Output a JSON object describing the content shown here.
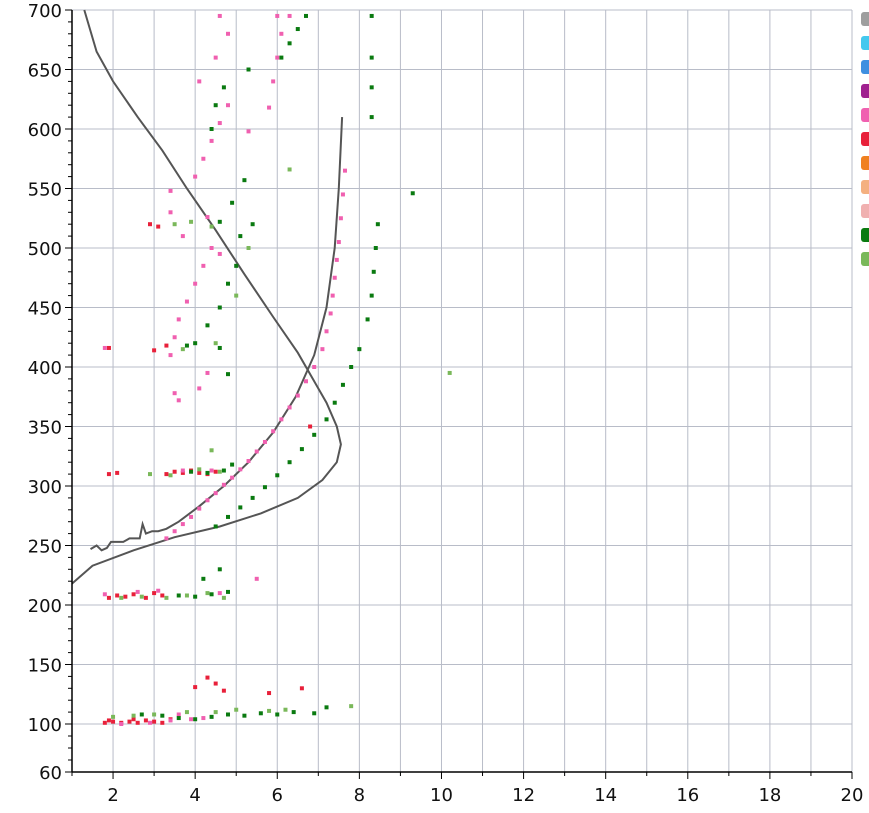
{
  "chart_data": {
    "type": "scatter",
    "title": "",
    "xlabel": "",
    "ylabel": "",
    "xlim": [
      1,
      20
    ],
    "ylim": [
      60,
      700
    ],
    "grid": true,
    "x_ticks": [
      2,
      4,
      6,
      8,
      10,
      12,
      14,
      16,
      18,
      20
    ],
    "y_ticks": [
      60,
      100,
      150,
      200,
      250,
      300,
      350,
      400,
      450,
      500,
      550,
      600,
      650,
      700
    ],
    "x_tick_labels": [
      "2",
      "4",
      "6",
      "8",
      "10",
      "12",
      "14",
      "16",
      "18",
      "20"
    ],
    "y_tick_labels": [
      "60",
      "100",
      "150",
      "200",
      "250",
      "300",
      "350",
      "400",
      "450",
      "500",
      "550",
      "600",
      "650",
      "700"
    ],
    "legend_position": "right (clipped at image edge)",
    "legend_swatch_colors": [
      "#9e9e9e",
      "#44c8ee",
      "#3f8fe0",
      "#a0208f",
      "#f060b0",
      "#e8203a",
      "#f08020",
      "#f4b080",
      "#f0b0b0",
      "#0a7a10",
      "#7ab85a"
    ],
    "series": [
      {
        "color": "#555555",
        "style": "line",
        "points": [
          [
            1.3,
            700
          ],
          [
            1.6,
            665
          ],
          [
            2.0,
            640
          ],
          [
            2.6,
            610
          ],
          [
            3.2,
            582
          ],
          [
            3.8,
            550
          ],
          [
            4.5,
            515
          ],
          [
            5.2,
            478
          ],
          [
            5.9,
            442
          ],
          [
            6.5,
            412
          ],
          [
            6.9,
            388
          ],
          [
            7.2,
            370
          ],
          [
            7.45,
            350
          ],
          [
            7.55,
            335
          ],
          [
            7.45,
            320
          ],
          [
            7.1,
            305
          ],
          [
            6.5,
            290
          ],
          [
            5.6,
            277
          ],
          [
            4.6,
            266
          ],
          [
            3.5,
            257
          ],
          [
            2.5,
            246
          ],
          [
            1.5,
            233
          ],
          [
            1.0,
            218
          ]
        ]
      },
      {
        "color": "#555555",
        "style": "line",
        "points": [
          [
            1.45,
            247
          ],
          [
            1.6,
            250
          ],
          [
            1.72,
            246
          ],
          [
            1.85,
            248
          ],
          [
            1.95,
            253
          ],
          [
            2.25,
            253
          ],
          [
            2.4,
            256
          ],
          [
            2.65,
            256
          ],
          [
            2.72,
            268
          ],
          [
            2.8,
            260
          ],
          [
            2.95,
            262
          ],
          [
            3.1,
            262
          ],
          [
            3.3,
            264
          ],
          [
            3.6,
            270
          ],
          [
            4.1,
            283
          ],
          [
            4.7,
            300
          ],
          [
            5.3,
            320
          ],
          [
            5.9,
            345
          ],
          [
            6.45,
            375
          ],
          [
            6.9,
            410
          ],
          [
            7.2,
            450
          ],
          [
            7.4,
            500
          ],
          [
            7.5,
            550
          ],
          [
            7.58,
            610
          ]
        ]
      },
      {
        "color": "#e8203a",
        "style": "points",
        "points": [
          [
            1.8,
            101
          ],
          [
            2.0,
            102
          ],
          [
            2.2,
            101
          ],
          [
            2.4,
            102
          ],
          [
            2.6,
            101
          ],
          [
            2.8,
            103
          ],
          [
            3.0,
            102
          ],
          [
            3.2,
            101
          ],
          [
            1.9,
            103
          ],
          [
            2.5,
            104
          ],
          [
            3.4,
            104
          ],
          [
            1.9,
            206
          ],
          [
            2.1,
            208
          ],
          [
            2.3,
            207
          ],
          [
            2.5,
            209
          ],
          [
            2.8,
            206
          ],
          [
            3.0,
            210
          ],
          [
            3.2,
            208
          ],
          [
            1.9,
            310
          ],
          [
            2.1,
            311
          ],
          [
            3.3,
            310
          ],
          [
            3.5,
            312
          ],
          [
            3.7,
            311
          ],
          [
            3.9,
            313
          ],
          [
            4.1,
            311
          ],
          [
            4.3,
            310
          ],
          [
            4.5,
            312
          ],
          [
            1.9,
            416
          ],
          [
            3.0,
            414
          ],
          [
            3.3,
            418
          ],
          [
            4.0,
            131
          ],
          [
            4.3,
            139
          ],
          [
            4.5,
            134
          ],
          [
            4.7,
            128
          ],
          [
            5.8,
            126
          ],
          [
            6.6,
            130
          ],
          [
            2.9,
            520
          ],
          [
            3.1,
            518
          ],
          [
            6.8,
            350
          ]
        ]
      },
      {
        "color": "#f060b0",
        "style": "points",
        "points": [
          [
            2.2,
            100
          ],
          [
            2.9,
            101
          ],
          [
            3.4,
            103
          ],
          [
            3.6,
            108
          ],
          [
            3.9,
            104
          ],
          [
            4.2,
            105
          ],
          [
            1.8,
            209
          ],
          [
            2.6,
            211
          ],
          [
            3.1,
            212
          ],
          [
            4.6,
            210
          ],
          [
            5.5,
            222
          ],
          [
            3.7,
            313
          ],
          [
            4.4,
            313
          ],
          [
            3.3,
            256
          ],
          [
            3.5,
            262
          ],
          [
            3.7,
            268
          ],
          [
            3.9,
            274
          ],
          [
            4.1,
            281
          ],
          [
            4.3,
            288
          ],
          [
            4.5,
            294
          ],
          [
            4.7,
            301
          ],
          [
            4.9,
            307
          ],
          [
            5.1,
            314
          ],
          [
            5.3,
            321
          ],
          [
            5.5,
            329
          ],
          [
            5.7,
            337
          ],
          [
            5.9,
            346
          ],
          [
            6.1,
            356
          ],
          [
            6.3,
            366
          ],
          [
            6.5,
            376
          ],
          [
            6.7,
            388
          ],
          [
            6.9,
            400
          ],
          [
            7.1,
            415
          ],
          [
            7.2,
            430
          ],
          [
            7.3,
            445
          ],
          [
            7.35,
            460
          ],
          [
            7.4,
            475
          ],
          [
            7.45,
            490
          ],
          [
            7.5,
            505
          ],
          [
            7.55,
            525
          ],
          [
            7.6,
            545
          ],
          [
            7.65,
            565
          ],
          [
            3.5,
            378
          ],
          [
            3.6,
            372
          ],
          [
            4.1,
            382
          ],
          [
            4.3,
            395
          ],
          [
            3.4,
            410
          ],
          [
            3.5,
            425
          ],
          [
            3.6,
            440
          ],
          [
            3.8,
            455
          ],
          [
            4.0,
            470
          ],
          [
            4.2,
            485
          ],
          [
            4.4,
            500
          ],
          [
            4.6,
            495
          ],
          [
            3.4,
            530
          ],
          [
            3.4,
            548
          ],
          [
            4.0,
            560
          ],
          [
            4.2,
            575
          ],
          [
            4.4,
            590
          ],
          [
            4.6,
            605
          ],
          [
            4.8,
            620
          ],
          [
            4.1,
            640
          ],
          [
            4.5,
            660
          ],
          [
            4.8,
            680
          ],
          [
            5.8,
            618
          ],
          [
            5.9,
            640
          ],
          [
            6.0,
            660
          ],
          [
            6.1,
            680
          ],
          [
            4.6,
            695
          ],
          [
            6.0,
            695
          ],
          [
            6.3,
            695
          ],
          [
            5.3,
            598
          ],
          [
            3.7,
            510
          ],
          [
            4.3,
            526
          ],
          [
            1.8,
            416
          ]
        ]
      },
      {
        "color": "#0a7a10",
        "style": "points",
        "points": [
          [
            2.7,
            108
          ],
          [
            3.2,
            107
          ],
          [
            3.6,
            105
          ],
          [
            4.0,
            104
          ],
          [
            4.4,
            106
          ],
          [
            4.8,
            108
          ],
          [
            5.2,
            107
          ],
          [
            5.6,
            109
          ],
          [
            6.0,
            108
          ],
          [
            6.4,
            110
          ],
          [
            6.9,
            109
          ],
          [
            7.2,
            114
          ],
          [
            3.6,
            208
          ],
          [
            4.0,
            207
          ],
          [
            4.4,
            209
          ],
          [
            4.8,
            211
          ],
          [
            4.2,
            222
          ],
          [
            4.6,
            230
          ],
          [
            3.9,
            312
          ],
          [
            4.3,
            311
          ],
          [
            4.7,
            313
          ],
          [
            4.9,
            318
          ],
          [
            4.5,
            266
          ],
          [
            4.8,
            274
          ],
          [
            5.1,
            282
          ],
          [
            5.4,
            290
          ],
          [
            5.7,
            299
          ],
          [
            6.0,
            309
          ],
          [
            6.3,
            320
          ],
          [
            6.6,
            331
          ],
          [
            6.9,
            343
          ],
          [
            7.2,
            356
          ],
          [
            7.4,
            370
          ],
          [
            7.6,
            385
          ],
          [
            7.8,
            400
          ],
          [
            8.0,
            415
          ],
          [
            8.2,
            440
          ],
          [
            8.3,
            460
          ],
          [
            8.35,
            480
          ],
          [
            8.4,
            500
          ],
          [
            8.45,
            520
          ],
          [
            4.0,
            420
          ],
          [
            4.3,
            435
          ],
          [
            4.6,
            450
          ],
          [
            4.8,
            470
          ],
          [
            5.0,
            485
          ],
          [
            3.8,
            418
          ],
          [
            4.6,
            416
          ],
          [
            4.8,
            394
          ],
          [
            4.6,
            522
          ],
          [
            4.9,
            538
          ],
          [
            5.2,
            557
          ],
          [
            4.4,
            600
          ],
          [
            4.5,
            620
          ],
          [
            4.7,
            635
          ],
          [
            5.3,
            650
          ],
          [
            6.1,
            660
          ],
          [
            6.3,
            672
          ],
          [
            6.5,
            684
          ],
          [
            6.7,
            695
          ],
          [
            8.3,
            610
          ],
          [
            8.3,
            635
          ],
          [
            8.3,
            660
          ],
          [
            8.3,
            695
          ],
          [
            5.1,
            510
          ],
          [
            5.4,
            520
          ],
          [
            9.3,
            546
          ]
        ]
      },
      {
        "color": "#7ab85a",
        "style": "points",
        "points": [
          [
            2.0,
            106
          ],
          [
            2.5,
            107
          ],
          [
            3.0,
            108
          ],
          [
            3.8,
            110
          ],
          [
            4.5,
            110
          ],
          [
            5.0,
            112
          ],
          [
            5.8,
            111
          ],
          [
            6.2,
            112
          ],
          [
            7.8,
            115
          ],
          [
            2.2,
            206
          ],
          [
            2.7,
            207
          ],
          [
            3.3,
            206
          ],
          [
            3.8,
            208
          ],
          [
            4.3,
            210
          ],
          [
            4.7,
            206
          ],
          [
            2.9,
            310
          ],
          [
            3.4,
            309
          ],
          [
            4.1,
            314
          ],
          [
            4.6,
            312
          ],
          [
            3.5,
            520
          ],
          [
            3.9,
            522
          ],
          [
            4.4,
            518
          ],
          [
            3.7,
            415
          ],
          [
            4.5,
            420
          ],
          [
            5.0,
            460
          ],
          [
            4.4,
            330
          ],
          [
            6.3,
            566
          ],
          [
            10.2,
            395
          ],
          [
            5.3,
            500
          ]
        ]
      }
    ]
  }
}
